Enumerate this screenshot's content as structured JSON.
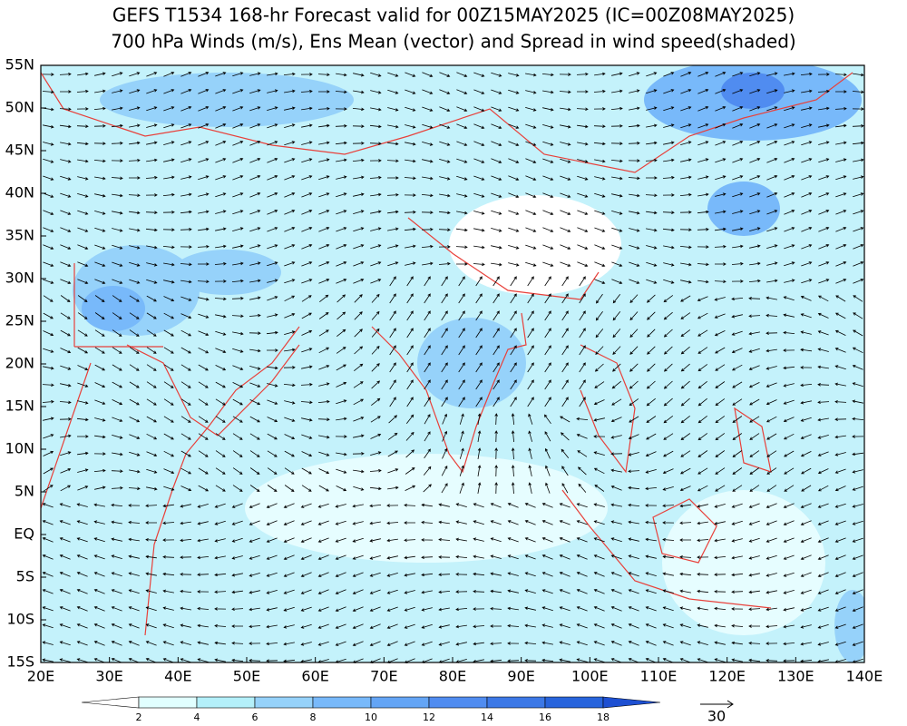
{
  "header": {
    "title": "GEFS T1534 168-hr Forecast valid for 00Z15MAY2025 (IC=00Z08MAY2025)",
    "subtitle": "700 hPa Winds (m/s), Ens Mean (vector) and Spread in wind speed(shaded)"
  },
  "axes": {
    "lat_labels": [
      "55N",
      "50N",
      "45N",
      "40N",
      "35N",
      "30N",
      "25N",
      "20N",
      "15N",
      "10N",
      "5N",
      "EQ",
      "5S",
      "10S",
      "15S"
    ],
    "lon_labels": [
      "20E",
      "30E",
      "40E",
      "50E",
      "60E",
      "70E",
      "80E",
      "90E",
      "100E",
      "110E",
      "120E",
      "130E",
      "140E"
    ]
  },
  "colorbar": {
    "labels": [
      2,
      4,
      6,
      8,
      10,
      12,
      14,
      16,
      18
    ],
    "colors": [
      "#ffffff",
      "#e1ffff",
      "#b4f0fa",
      "#96d2fa",
      "#78b9fa",
      "#64a5f5",
      "#508cf0",
      "#3c78e6",
      "#2864dc",
      "#1e50d2"
    ]
  },
  "reference_vector": {
    "label": "30"
  }
}
